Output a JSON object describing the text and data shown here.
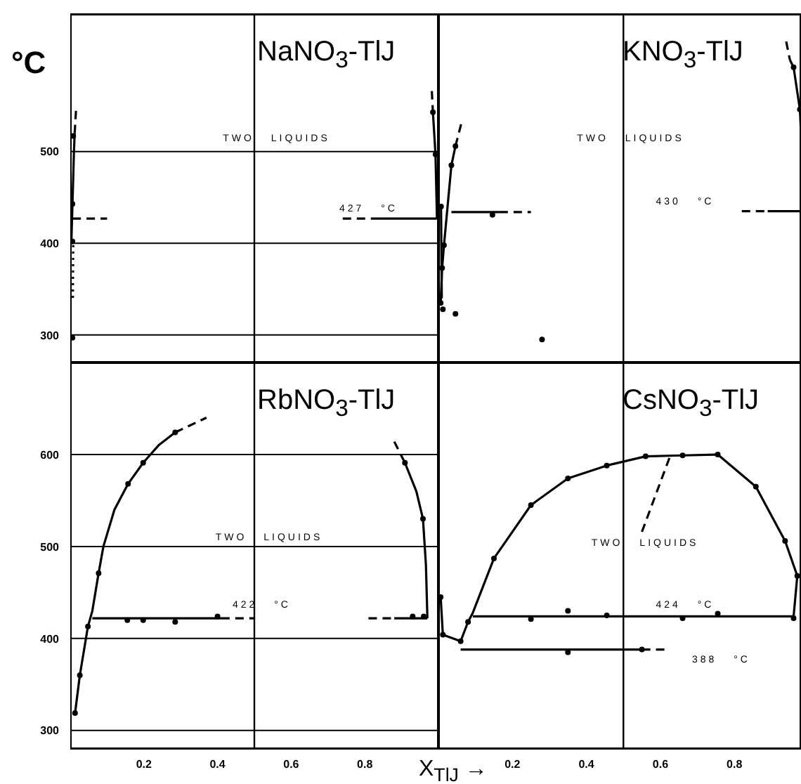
{
  "chart_data": [
    {
      "type": "line",
      "title": "NaNO$_{3}$-TlJ",
      "ylabel": "°C",
      "xlim": [
        0,
        1
      ],
      "ylim": [
        270,
        650
      ],
      "xticks": [
        0.2,
        0.4,
        0.6,
        0.8
      ],
      "yticks": [
        300,
        400,
        500
      ],
      "grid": "y",
      "tick_labels": "y",
      "ref_lines": [
        {
          "axis": "x",
          "value": 0.5,
          "color": "#000000"
        }
      ],
      "annotations": [
        "TWO LIQUIDS",
        "427 °C"
      ],
      "series": [
        {
          "color": "#000000",
          "line_style": "solid",
          "x": [
            0.003,
            0.006,
            0.01,
            0.012
          ],
          "values": [
            402,
            443,
            500,
            520
          ]
        },
        {
          "color": "#000000",
          "line_style": "dashed",
          "x": [
            0.012,
            0.016
          ],
          "values": [
            520,
            548
          ]
        },
        {
          "color": "#000000",
          "line_style": "dotted",
          "x": [
            0.008,
            0.007
          ],
          "values": [
            398,
            340
          ]
        },
        {
          "color": "#000000",
          "line_style": "dashed",
          "x": [
            0.006,
            0.1
          ],
          "values": [
            427,
            427
          ]
        },
        {
          "color": "#000000",
          "line_style": "dashed",
          "x": [
            0.74,
            0.83
          ],
          "values": [
            427,
            427
          ]
        },
        {
          "color": "#000000",
          "line_style": "solid",
          "x": [
            0.83,
            0.996
          ],
          "values": [
            427,
            427
          ]
        },
        {
          "color": "#000000",
          "line_style": "dashed",
          "x": [
            0.982,
            0.985
          ],
          "values": [
            566,
            543
          ]
        },
        {
          "color": "#000000",
          "line_style": "solid",
          "x": [
            0.985,
            0.992,
            0.996
          ],
          "values": [
            543,
            497,
            427
          ]
        },
        {
          "type": "scatter",
          "color": "#000000",
          "marker": "circle",
          "x": [
            0.006,
            0.006,
            0.008,
            0.006,
            0.985,
            0.992
          ],
          "values": [
            402,
            443,
            517,
            297,
            543,
            497
          ]
        }
      ]
    },
    {
      "type": "line",
      "title": "KNO$_{3}$-TlJ",
      "xlim": [
        0,
        0.98
      ],
      "ylim": [
        270,
        650
      ],
      "xticks": [
        0.2,
        0.4,
        0.6,
        0.8
      ],
      "yticks": [
        300,
        400,
        500
      ],
      "grid": "y",
      "tick_labels": false,
      "ref_lines": [
        {
          "axis": "x",
          "value": 0.5,
          "color": "#000000"
        }
      ],
      "annotations": [
        "TWO LIQUIDS",
        "430 °C"
      ],
      "series": [
        {
          "color": "#000000",
          "line_style": "solid",
          "x": [
            0.006,
            0.01,
            0.015,
            0.035,
            0.046
          ],
          "values": [
            335,
            373,
            398,
            485,
            506
          ]
        },
        {
          "color": "#000000",
          "line_style": "dashed",
          "x": [
            0.046,
            0.062
          ],
          "values": [
            506,
            531
          ]
        },
        {
          "color": "#000000",
          "line_style": "solid",
          "x": [
            0.007,
            0.009
          ],
          "values": [
            440,
            340
          ]
        },
        {
          "color": "#000000",
          "line_style": "solid",
          "x": [
            0.035,
            0.165
          ],
          "values": [
            434,
            434
          ]
        },
        {
          "color": "#000000",
          "line_style": "dashed",
          "x": [
            0.165,
            0.25
          ],
          "values": [
            434,
            434
          ]
        },
        {
          "color": "#000000",
          "line_style": "dashed",
          "x": [
            0.82,
            0.89
          ],
          "values": [
            435,
            435
          ]
        },
        {
          "color": "#000000",
          "line_style": "solid",
          "x": [
            0.89,
            0.98
          ],
          "values": [
            435,
            435
          ]
        },
        {
          "color": "#000000",
          "line_style": "dashed",
          "x": [
            0.94,
            0.95
          ],
          "values": [
            620,
            600
          ]
        },
        {
          "color": "#000000",
          "line_style": "solid",
          "x": [
            0.95,
            0.96,
            0.977,
            0.98
          ],
          "values": [
            600,
            592,
            546,
            520
          ]
        },
        {
          "type": "scatter",
          "color": "#000000",
          "marker": "circle",
          "x": [
            0.007,
            0.006,
            0.012,
            0.01,
            0.015,
            0.035,
            0.046,
            0.046,
            0.146,
            0.28,
            0.96,
            0.977
          ],
          "values": [
            440,
            335,
            328,
            373,
            398,
            485,
            506,
            323,
            431,
            295,
            592,
            546
          ]
        }
      ]
    },
    {
      "type": "line",
      "title": "RbNO$_{3}$-TlJ",
      "xlim": [
        0,
        1
      ],
      "ylim": [
        280,
        700
      ],
      "xticks": [
        0.2,
        0.4,
        0.6,
        0.8
      ],
      "yticks": [
        300,
        400,
        500,
        600
      ],
      "grid": "y",
      "ref_lines": [
        {
          "axis": "x",
          "value": 0.5,
          "color": "#000000"
        }
      ],
      "annotations": [
        "TWO LIQUIDS",
        "422 °C"
      ],
      "series": [
        {
          "color": "#000000",
          "line_style": "solid",
          "x": [
            0.006,
            0.013,
            0.026,
            0.048,
            0.06,
            0.077,
            0.09,
            0.12,
            0.157,
            0.198,
            0.24,
            0.285
          ],
          "values": [
            318,
            319,
            360,
            413,
            430,
            471,
            500,
            540,
            568,
            591,
            610,
            624
          ]
        },
        {
          "color": "#000000",
          "line_style": "dashed",
          "x": [
            0.285,
            0.37
          ],
          "values": [
            624,
            640
          ]
        },
        {
          "color": "#000000",
          "line_style": "solid",
          "x": [
            0.06,
            0.41
          ],
          "values": [
            422,
            422
          ]
        },
        {
          "color": "#000000",
          "line_style": "dashed",
          "x": [
            0.41,
            0.5
          ],
          "values": [
            422,
            422
          ]
        },
        {
          "color": "#000000",
          "line_style": "dashed",
          "x": [
            0.81,
            0.88
          ],
          "values": [
            422,
            422
          ]
        },
        {
          "color": "#000000",
          "line_style": "solid",
          "x": [
            0.88,
            0.97
          ],
          "values": [
            422,
            422
          ]
        },
        {
          "color": "#000000",
          "line_style": "dashed",
          "x": [
            0.88,
            0.909
          ],
          "values": [
            614,
            591
          ]
        },
        {
          "color": "#000000",
          "line_style": "solid",
          "x": [
            0.909,
            0.94,
            0.958,
            0.966,
            0.97
          ],
          "values": [
            591,
            560,
            530,
            480,
            422
          ]
        },
        {
          "type": "scatter",
          "color": "#000000",
          "marker": "circle",
          "x": [
            0.013,
            0.026,
            0.048,
            0.077,
            0.157,
            0.198,
            0.285,
            0.155,
            0.198,
            0.285,
            0.4,
            0.909,
            0.958,
            0.93,
            0.96
          ],
          "values": [
            319,
            360,
            413,
            471,
            568,
            591,
            624,
            420,
            420,
            418,
            424,
            591,
            530,
            424,
            424
          ]
        }
      ]
    },
    {
      "type": "line",
      "title": "CsNO$_{3}$-TlJ",
      "xlabel": "X$_{TlJ}$ →",
      "xlim": [
        0,
        0.98
      ],
      "ylim": [
        280,
        700
      ],
      "xticks": [
        0.2,
        0.4,
        0.6,
        0.8
      ],
      "yticks": [
        300,
        400,
        500,
        600
      ],
      "grid": "y",
      "tick_labels": "x",
      "ref_lines": [
        {
          "axis": "x",
          "value": 0.5,
          "color": "#000000"
        }
      ],
      "annotations": [
        "TWO LIQUIDS",
        "424 °C",
        "388 °C"
      ],
      "series": [
        {
          "color": "#000000",
          "line_style": "solid",
          "x": [
            0.006,
            0.012,
            0.06,
            0.08,
            0.093,
            0.15,
            0.25,
            0.35,
            0.455,
            0.56,
            0.66,
            0.755,
            0.858,
            0.937,
            0.97,
            0.96,
            0.093
          ],
          "values": [
            445,
            404,
            397,
            418,
            428,
            487,
            545,
            574,
            588,
            598,
            599,
            600,
            565,
            506,
            468,
            424,
            424
          ]
        },
        {
          "color": "#000000",
          "line_style": "solid",
          "x": [
            0.06,
            0.55
          ],
          "values": [
            388,
            388
          ]
        },
        {
          "color": "#000000",
          "line_style": "dashed",
          "x": [
            0.55,
            0.62
          ],
          "values": [
            388,
            388
          ]
        },
        {
          "color": "#000000",
          "line_style": "dashed",
          "x": [
            0.55,
            0.626
          ],
          "values": [
            516,
            598
          ]
        },
        {
          "type": "scatter",
          "color": "#000000",
          "marker": "circle",
          "x": [
            0.006,
            0.012,
            0.06,
            0.08,
            0.15,
            0.25,
            0.35,
            0.455,
            0.56,
            0.66,
            0.755,
            0.858,
            0.937,
            0.97,
            0.96,
            0.25,
            0.35,
            0.455,
            0.66,
            0.755,
            0.35,
            0.55
          ],
          "values": [
            445,
            404,
            397,
            418,
            487,
            545,
            574,
            588,
            598,
            599,
            600,
            565,
            506,
            468,
            422,
            421,
            430,
            425,
            422,
            427,
            385,
            388
          ]
        }
      ]
    }
  ]
}
